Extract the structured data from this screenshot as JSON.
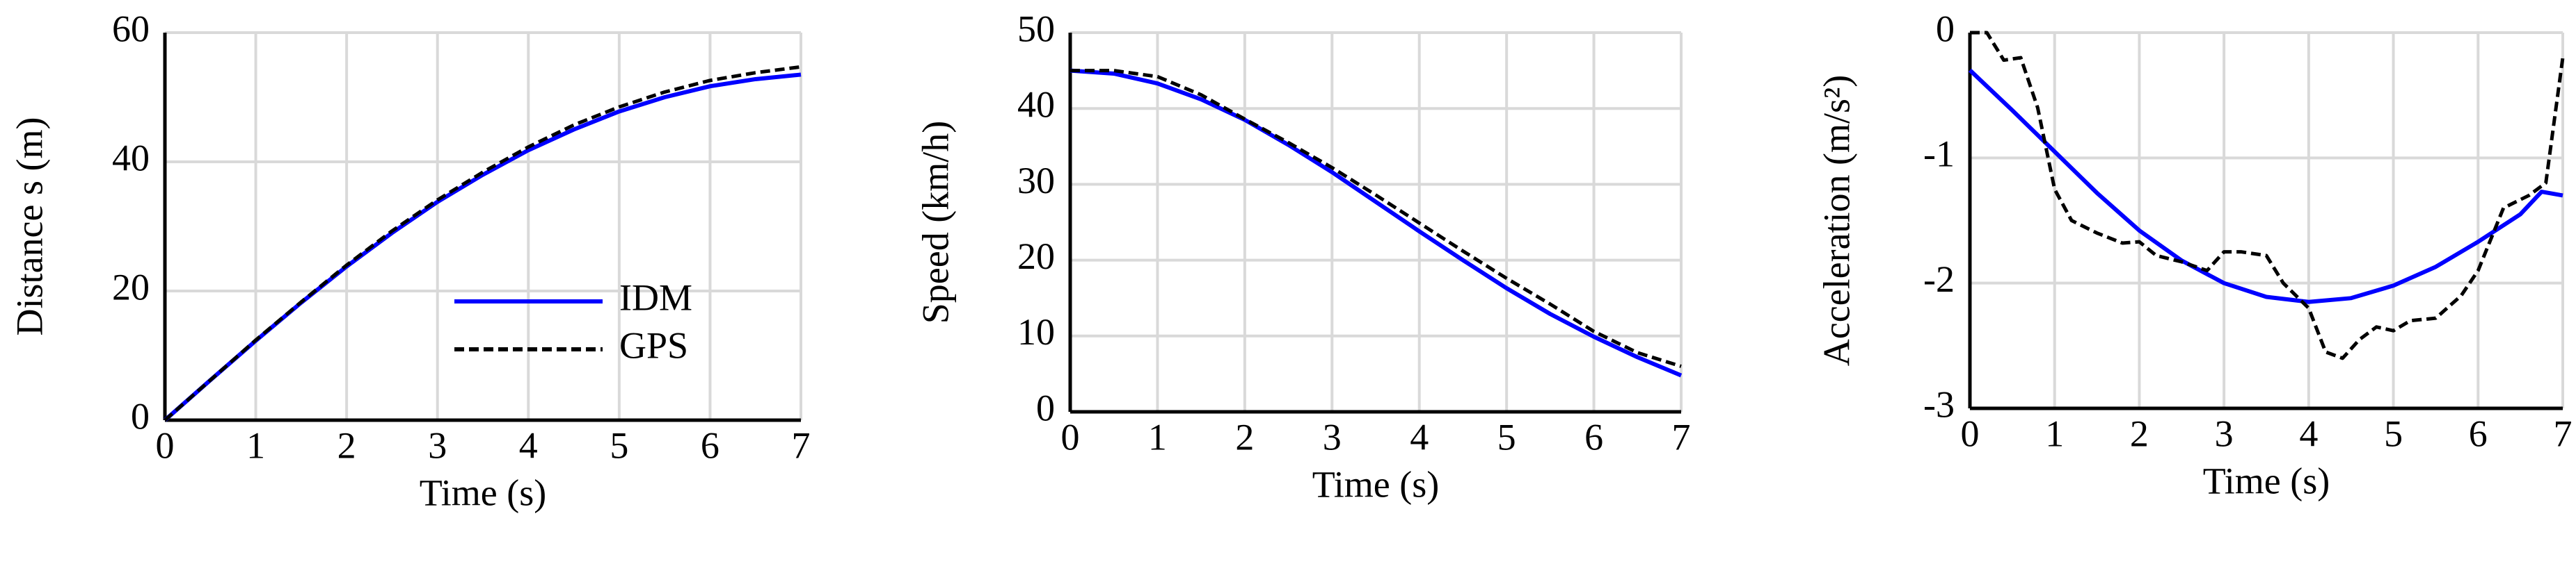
{
  "chart_data": [
    {
      "type": "line",
      "xlabel": "Time (s)",
      "ylabel": "Distance s (m)",
      "xlim": [
        0,
        7
      ],
      "ylim": [
        0,
        60
      ],
      "xticks": [
        0,
        1,
        2,
        3,
        4,
        5,
        6,
        7
      ],
      "yticks": [
        0,
        20,
        40,
        60
      ],
      "grid": true,
      "legend": "lower right",
      "series": [
        {
          "name": "IDM",
          "color": "#0000ff",
          "line_style": "solid",
          "x": [
            0,
            0.5,
            1,
            1.5,
            2,
            2.5,
            3,
            3.5,
            4,
            4.5,
            5,
            5.5,
            6,
            6.5,
            7
          ],
          "values": [
            0,
            6.2,
            12.3,
            18.2,
            23.8,
            29,
            33.8,
            38,
            41.8,
            45,
            47.8,
            50,
            51.7,
            52.8,
            53.5
          ]
        },
        {
          "name": "GPS",
          "color": "#000000",
          "line_style": "dashed",
          "x": [
            0,
            0.5,
            1,
            1.5,
            2,
            2.5,
            3,
            3.5,
            4,
            4.5,
            5,
            5.5,
            6,
            6.5,
            7
          ],
          "values": [
            0,
            6.2,
            12.4,
            18.3,
            24,
            29.3,
            34.1,
            38.4,
            42.3,
            45.7,
            48.5,
            50.8,
            52.6,
            53.8,
            54.7
          ]
        }
      ]
    },
    {
      "type": "line",
      "xlabel": "Time (s)",
      "ylabel": "Speed (km/h)",
      "xlim": [
        0,
        7
      ],
      "ylim": [
        0,
        50
      ],
      "xticks": [
        0,
        1,
        2,
        3,
        4,
        5,
        6,
        7
      ],
      "yticks": [
        0,
        10,
        20,
        30,
        40,
        50
      ],
      "grid": true,
      "series": [
        {
          "color": "#0000ff",
          "line_style": "solid",
          "x": [
            0,
            0.5,
            1,
            1.5,
            2,
            2.5,
            3,
            3.5,
            4,
            4.5,
            5,
            5.5,
            6,
            6.5,
            7
          ],
          "values": [
            45,
            44.6,
            43.3,
            41.2,
            38.5,
            35.2,
            31.6,
            27.7,
            23.8,
            20,
            16.3,
            12.9,
            9.9,
            7.2,
            4.8
          ]
        },
        {
          "color": "#000000",
          "line_style": "dashed",
          "x": [
            0,
            0.5,
            1,
            1.5,
            2,
            2.5,
            3,
            3.5,
            4,
            4.5,
            5,
            5.5,
            6,
            6.5,
            7
          ],
          "values": [
            45,
            45,
            44.2,
            41.8,
            38.6,
            35.5,
            32.2,
            28.6,
            24.9,
            21.2,
            17.6,
            14.2,
            10.6,
            7.8,
            6
          ]
        }
      ]
    },
    {
      "type": "line",
      "xlabel": "Time (s)",
      "ylabel": "Acceleration (m/s²)",
      "xlim": [
        0,
        7
      ],
      "ylim": [
        -3,
        0
      ],
      "xticks": [
        0,
        1,
        2,
        3,
        4,
        5,
        6,
        7
      ],
      "yticks": [
        -3,
        -2,
        -1,
        0
      ],
      "grid": true,
      "series": [
        {
          "color": "#0000ff",
          "line_style": "solid",
          "x": [
            0,
            0.5,
            1,
            1.5,
            2,
            2.5,
            3,
            3.5,
            4,
            4.5,
            5,
            5.5,
            6,
            6.5,
            6.75,
            7
          ],
          "values": [
            -0.3,
            -0.62,
            -0.95,
            -1.28,
            -1.58,
            -1.82,
            -2,
            -2.11,
            -2.15,
            -2.12,
            -2.02,
            -1.87,
            -1.67,
            -1.45,
            -1.27,
            -1.3
          ]
        },
        {
          "color": "#000000",
          "line_style": "dashed",
          "x": [
            0,
            0.2,
            0.4,
            0.6,
            0.8,
            1,
            1.2,
            1.5,
            1.8,
            2,
            2.2,
            2.5,
            2.8,
            3,
            3.2,
            3.5,
            3.7,
            4,
            4.2,
            4.4,
            4.6,
            4.8,
            5,
            5.2,
            5.5,
            5.8,
            6,
            6.3,
            6.6,
            6.8,
            7
          ],
          "values": [
            0,
            0,
            -0.22,
            -0.2,
            -0.6,
            -1.25,
            -1.5,
            -1.6,
            -1.68,
            -1.67,
            -1.78,
            -1.83,
            -1.9,
            -1.75,
            -1.75,
            -1.78,
            -2,
            -2.2,
            -2.55,
            -2.6,
            -2.45,
            -2.35,
            -2.38,
            -2.3,
            -2.28,
            -2.1,
            -1.9,
            -1.4,
            -1.3,
            -1.2,
            -0.2
          ]
        }
      ]
    }
  ]
}
